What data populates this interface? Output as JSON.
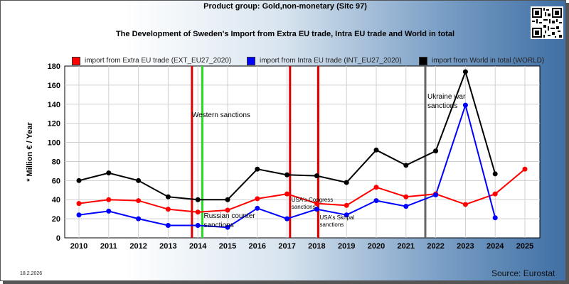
{
  "header": {
    "title": "Product group: Gold,non-monetary (Sitc 97)",
    "subtitle": "The Development of Sweden's Import from Extra EU trade, Intra EU trade and World in total"
  },
  "footer": {
    "date": "18.2.2026",
    "source": "Source: Eurostat"
  },
  "colors": {
    "extra_eu": "#ff0000",
    "intra_eu": "#0000ff",
    "world": "#000000",
    "sanction_red": "#e00000",
    "sanction_green": "#22dd22",
    "sanction_gray": "#666666"
  },
  "chart_data": {
    "type": "line",
    "title": "The Development of Sweden's Import from Extra EU trade, Intra EU trade and World in total",
    "ylabel": "* Million € / Year",
    "xlabel": "",
    "ylim": [
      0,
      180
    ],
    "yticks": [
      0,
      20,
      40,
      60,
      80,
      100,
      120,
      140,
      160,
      180
    ],
    "grid": true,
    "legend_position": "top",
    "x": [
      "2010",
      "2011",
      "2012",
      "2013",
      "2014",
      "2015",
      "2016",
      "2017",
      "2018",
      "2019",
      "2020",
      "2021",
      "2022",
      "2023",
      "2024",
      "2025"
    ],
    "series": [
      {
        "name": "import from Extra EU trade (EXT_EU27_2020)",
        "color": "#ff0000",
        "values": [
          36,
          40,
          39,
          30,
          27,
          29,
          41,
          46,
          36,
          34,
          53,
          43,
          46,
          35,
          46,
          72
        ]
      },
      {
        "name": "import from Intra EU trade (INT_EU27_2020)",
        "color": "#0000ff",
        "values": [
          24,
          28,
          20,
          13,
          13,
          11,
          31,
          20,
          30,
          24,
          39,
          33,
          45,
          139,
          21,
          null
        ]
      },
      {
        "name": "import from World in total (WORLD)",
        "color": "#000000",
        "values": [
          60,
          68,
          60,
          43,
          40,
          40,
          72,
          66,
          65,
          58,
          92,
          76,
          91,
          174,
          67,
          null
        ]
      }
    ],
    "annotations": [
      {
        "year": 2013.8,
        "color": "#e00000",
        "text": [
          "Western sanctions"
        ]
      },
      {
        "year": 2014.15,
        "color": "#22dd22",
        "text": [
          "Russian counter",
          "sanctions"
        ]
      },
      {
        "year": 2017.1,
        "color": "#e00000",
        "text": [
          "USA's Congress",
          "sanctions"
        ]
      },
      {
        "year": 2018.05,
        "color": "#e00000",
        "text": [
          "USA's Skripal",
          "sanctions"
        ]
      },
      {
        "year": 2021.65,
        "color": "#666666",
        "text": [
          "Ukraine war",
          "sanctions"
        ]
      }
    ]
  }
}
